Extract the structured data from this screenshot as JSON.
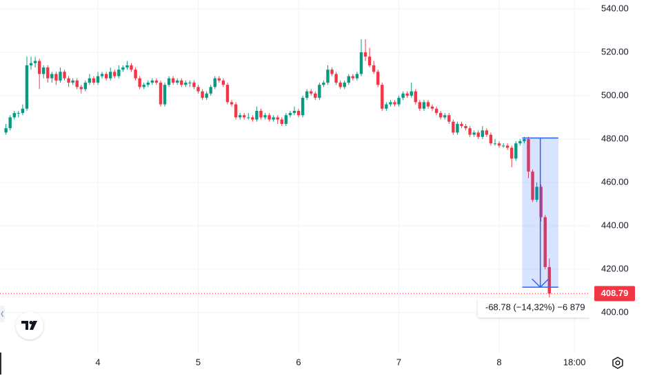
{
  "chart_data": {
    "type": "candlestick",
    "colors": {
      "up": "#089981",
      "down": "#f23645"
    },
    "xlim": [
      3.024,
      8.9
    ],
    "ylim": [
      381.6,
      544.1
    ],
    "xticks": [
      4,
      5,
      6,
      7,
      8,
      {
        "value": 8.75,
        "label": "18:00"
      }
    ],
    "yticks": [
      {
        "value": 400,
        "label": "400.00"
      },
      {
        "value": 420,
        "label": "420.00"
      },
      {
        "value": 440,
        "label": "440.00"
      },
      {
        "value": 460,
        "label": "460.00"
      },
      {
        "value": 480,
        "label": "480.00"
      },
      {
        "value": 500,
        "label": "500.00"
      },
      {
        "value": 520,
        "label": "520.00"
      },
      {
        "value": 540,
        "label": "540.00"
      }
    ],
    "grid": true,
    "x": [
      3.0833,
      3.125,
      3.1667,
      3.2083,
      3.25,
      3.2917,
      3.3333,
      3.375,
      3.4167,
      3.4583,
      3.5,
      3.5417,
      3.5833,
      3.625,
      3.6667,
      3.7083,
      3.75,
      3.7917,
      3.8333,
      3.875,
      3.9167,
      3.9583,
      4,
      4.0417,
      4.0833,
      4.125,
      4.1667,
      4.2083,
      4.25,
      4.2917,
      4.3333,
      4.375,
      4.4167,
      4.4583,
      4.5,
      4.5417,
      4.5833,
      4.625,
      4.6667,
      4.7083,
      4.75,
      4.7917,
      4.8333,
      4.875,
      4.9167,
      4.9583,
      5,
      5.0417,
      5.0833,
      5.125,
      5.1667,
      5.2083,
      5.25,
      5.2917,
      5.3333,
      5.375,
      5.4167,
      5.4583,
      5.5,
      5.5417,
      5.5833,
      5.625,
      5.6667,
      5.7083,
      5.75,
      5.7917,
      5.8333,
      5.875,
      5.9167,
      5.9583,
      6,
      6.0417,
      6.0833,
      6.125,
      6.1667,
      6.2083,
      6.25,
      6.2917,
      6.3333,
      6.375,
      6.4167,
      6.4583,
      6.5,
      6.5417,
      6.5833,
      6.625,
      6.6667,
      6.7083,
      6.75,
      6.7917,
      6.8333,
      6.875,
      6.9167,
      6.9583,
      7,
      7.0417,
      7.0833,
      7.125,
      7.1667,
      7.2083,
      7.25,
      7.2917,
      7.3333,
      7.375,
      7.4167,
      7.4583,
      7.5,
      7.5417,
      7.5833,
      7.625,
      7.6667,
      7.7083,
      7.75,
      7.7917,
      7.8333,
      7.875,
      7.9167,
      7.9583,
      8,
      8.0417,
      8.0833,
      8.125,
      8.1667,
      8.2083,
      8.25,
      8.2917,
      8.3333,
      8.375,
      8.4167,
      8.4583,
      8.5
    ],
    "ohlc": [
      [
        483,
        487,
        482,
        485
      ],
      [
        485,
        491,
        484,
        490
      ],
      [
        490,
        493,
        489,
        492
      ],
      [
        492,
        493,
        490,
        492
      ],
      [
        492,
        496,
        491,
        494
      ],
      [
        494,
        518,
        493,
        514
      ],
      [
        514,
        518,
        512,
        515
      ],
      [
        515,
        518,
        513,
        516
      ],
      [
        516,
        517,
        503,
        510
      ],
      [
        510,
        514,
        508,
        513
      ],
      [
        513,
        514,
        506,
        508
      ],
      [
        508,
        511,
        506,
        510
      ],
      [
        510,
        511,
        505,
        507
      ],
      [
        507,
        513,
        506,
        511
      ],
      [
        511,
        512,
        507,
        508
      ],
      [
        508,
        509,
        504,
        506
      ],
      [
        506,
        508,
        505,
        507
      ],
      [
        507,
        508,
        503,
        504
      ],
      [
        504,
        505,
        501,
        503
      ],
      [
        503,
        507,
        502,
        506
      ],
      [
        506,
        510,
        505,
        508
      ],
      [
        508,
        509,
        505,
        506
      ],
      [
        506,
        511,
        505,
        509
      ],
      [
        509,
        511,
        508,
        510
      ],
      [
        510,
        511,
        507,
        508
      ],
      [
        508,
        513,
        507,
        511
      ],
      [
        511,
        512,
        508,
        509
      ],
      [
        509,
        514,
        508,
        512
      ],
      [
        512,
        514,
        511,
        513
      ],
      [
        513,
        516,
        512,
        514
      ],
      [
        514,
        515,
        511,
        512
      ],
      [
        512,
        513,
        507,
        508
      ],
      [
        508,
        509,
        503,
        504
      ],
      [
        504,
        506,
        503,
        505
      ],
      [
        505,
        507,
        504,
        506
      ],
      [
        506,
        508,
        505,
        507
      ],
      [
        507,
        508,
        505,
        506
      ],
      [
        506,
        507,
        495,
        496
      ],
      [
        496,
        506,
        495,
        505
      ],
      [
        505,
        509,
        504,
        508
      ],
      [
        508,
        509,
        505,
        506
      ],
      [
        506,
        508,
        505,
        507
      ],
      [
        507,
        508,
        504,
        505
      ],
      [
        505,
        507,
        504,
        506
      ],
      [
        506,
        507,
        504,
        506
      ],
      [
        506,
        507,
        503,
        504
      ],
      [
        504,
        505,
        501,
        502
      ],
      [
        502,
        503,
        498,
        499
      ],
      [
        499,
        502,
        498,
        501
      ],
      [
        501,
        505,
        500,
        504
      ],
      [
        504,
        509,
        503,
        508
      ],
      [
        508,
        509,
        506,
        507
      ],
      [
        507,
        508,
        504,
        505
      ],
      [
        505,
        506,
        496,
        497
      ],
      [
        497,
        498,
        495,
        496
      ],
      [
        496,
        497,
        489,
        490
      ],
      [
        490,
        492,
        489,
        491
      ],
      [
        491,
        492,
        489,
        490
      ],
      [
        490,
        492,
        489,
        490
      ],
      [
        490,
        491,
        488,
        489
      ],
      [
        489,
        495,
        488,
        493
      ],
      [
        493,
        494,
        489,
        490
      ],
      [
        490,
        492,
        489,
        491
      ],
      [
        491,
        492,
        488,
        489
      ],
      [
        489,
        491,
        488,
        490
      ],
      [
        490,
        491,
        487,
        489
      ],
      [
        489,
        490,
        486,
        487
      ],
      [
        487,
        492,
        486,
        491
      ],
      [
        491,
        493,
        490,
        492
      ],
      [
        492,
        495,
        491,
        493
      ],
      [
        493,
        494,
        490,
        491
      ],
      [
        491,
        500,
        490,
        499
      ],
      [
        499,
        503,
        498,
        502
      ],
      [
        502,
        503,
        500,
        501
      ],
      [
        501,
        502,
        498,
        499
      ],
      [
        499,
        506,
        498,
        505
      ],
      [
        505,
        507,
        504,
        506
      ],
      [
        506,
        514,
        505,
        512
      ],
      [
        512,
        513,
        509,
        510
      ],
      [
        510,
        511,
        505,
        506
      ],
      [
        506,
        507,
        503,
        504
      ],
      [
        504,
        507,
        503,
        506
      ],
      [
        506,
        510,
        505,
        509
      ],
      [
        509,
        510,
        507,
        508
      ],
      [
        508,
        511,
        507,
        510
      ],
      [
        510,
        526,
        509,
        520
      ],
      [
        520,
        526,
        516,
        518
      ],
      [
        518,
        522,
        513,
        514
      ],
      [
        514,
        516,
        510,
        511
      ],
      [
        511,
        512,
        504,
        505
      ],
      [
        505,
        506,
        493,
        494
      ],
      [
        494,
        497,
        493,
        496
      ],
      [
        496,
        498,
        495,
        497
      ],
      [
        497,
        498,
        495,
        496
      ],
      [
        496,
        500,
        495,
        499
      ],
      [
        499,
        502,
        498,
        501
      ],
      [
        501,
        502,
        499,
        500
      ],
      [
        500,
        506,
        499,
        502
      ],
      [
        502,
        503,
        496,
        497
      ],
      [
        497,
        498,
        493,
        494
      ],
      [
        494,
        498,
        493,
        497
      ],
      [
        497,
        498,
        494,
        495
      ],
      [
        495,
        496,
        493,
        494
      ],
      [
        494,
        495,
        491,
        492
      ],
      [
        492,
        493,
        489,
        490
      ],
      [
        490,
        492,
        489,
        491
      ],
      [
        491,
        492,
        487,
        488
      ],
      [
        488,
        489,
        482,
        483
      ],
      [
        483,
        488,
        482,
        487
      ],
      [
        487,
        488,
        485,
        486
      ],
      [
        486,
        487,
        484,
        485
      ],
      [
        485,
        486,
        481,
        482
      ],
      [
        482,
        484,
        481,
        483
      ],
      [
        483,
        484,
        480,
        481
      ],
      [
        481,
        486,
        480,
        484
      ],
      [
        484,
        485,
        481,
        482
      ],
      [
        482,
        483,
        477,
        478
      ],
      [
        478,
        480,
        477,
        478
      ],
      [
        478,
        479,
        476,
        477
      ],
      [
        477,
        478,
        476,
        477
      ],
      [
        477,
        478,
        475,
        476
      ],
      [
        476,
        477,
        467,
        471
      ],
      [
        471,
        479,
        470,
        478
      ],
      [
        478,
        480,
        477,
        479
      ],
      [
        479,
        481,
        478,
        480
      ],
      [
        480,
        481,
        462,
        465
      ],
      [
        465,
        466,
        451,
        452
      ],
      [
        452,
        460,
        451,
        458
      ],
      [
        458,
        459,
        442,
        444
      ],
      [
        444,
        445,
        420,
        421
      ],
      [
        421,
        425,
        407,
        408.79
      ]
    ],
    "last_price": 408.79,
    "measure": {
      "x_range": [
        8.23,
        8.59
      ],
      "top": 480.5,
      "bottom": 411.72,
      "label": "-68.78 (−14,32%) −6 879"
    }
  }
}
